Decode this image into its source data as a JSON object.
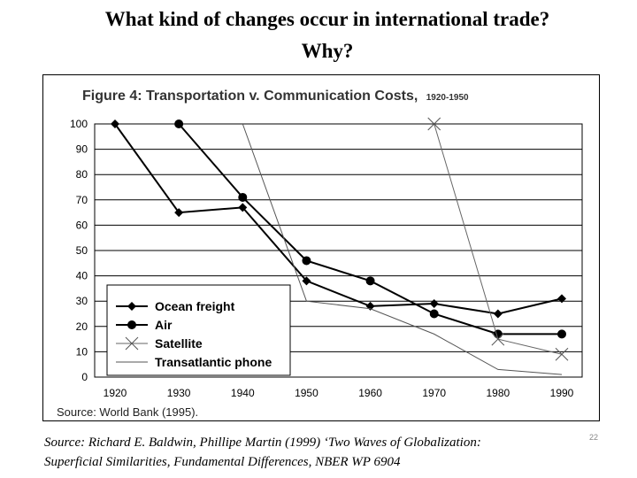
{
  "slide": {
    "title_line1": "What kind of changes occur in international trade?",
    "title_line2": "Why?",
    "source_line1": "Source:  Richard E. Baldwin, Phillipe Martin (1999) ‘Two Waves of Globalization:",
    "source_line2": "Superficial Similarities, Fundamental Differences, NBER WP 6904",
    "page_number": "22"
  },
  "chart_data": {
    "type": "line",
    "title": "Figure 4: Transportation v. Communication Costs,",
    "title_suffix": "1920-1950",
    "footnote": "Source: World Bank (1995).",
    "xlabel": "",
    "ylabel": "",
    "categories": [
      "1920",
      "1930",
      "1940",
      "1950",
      "1960",
      "1970",
      "1980",
      "1990"
    ],
    "x": [
      1920,
      1930,
      1940,
      1950,
      1960,
      1970,
      1980,
      1990
    ],
    "ylim": [
      0,
      100
    ],
    "yticks": [
      0,
      10,
      20,
      30,
      40,
      50,
      60,
      70,
      80,
      90,
      100
    ],
    "grid": true,
    "legend_position": "bottom-left",
    "series": [
      {
        "name": "Ocean freight",
        "marker": "diamond",
        "x": [
          1920,
          1930,
          1940,
          1950,
          1960,
          1970,
          1980,
          1990
        ],
        "values": [
          100,
          65,
          67,
          38,
          28,
          29,
          25,
          31
        ]
      },
      {
        "name": "Air",
        "marker": "circle",
        "x": [
          1930,
          1940,
          1950,
          1960,
          1970,
          1980,
          1990
        ],
        "values": [
          100,
          71,
          46,
          38,
          25,
          17,
          17
        ]
      },
      {
        "name": "Satellite",
        "marker": "x",
        "x": [
          1970,
          1980,
          1990
        ],
        "values": [
          100,
          15,
          9
        ]
      },
      {
        "name": "Transatlantic phone",
        "marker": "none",
        "x": [
          1940,
          1950,
          1960,
          1970,
          1980,
          1990
        ],
        "values": [
          100,
          30,
          27,
          17,
          3,
          1
        ]
      }
    ]
  }
}
